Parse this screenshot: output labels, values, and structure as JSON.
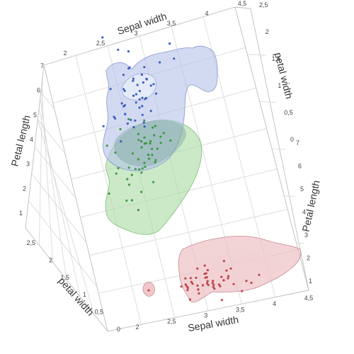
{
  "chart_data": {
    "type": "scatter3d",
    "title": "",
    "dimensions": [
      "Sepal width",
      "Petal length",
      "Petal width"
    ],
    "axes": {
      "sepal_width_top": {
        "label": "Sepal width",
        "ticks": [
          "2",
          "2,5",
          "3",
          "3,5",
          "4",
          "4,5"
        ]
      },
      "sepal_width_bottom": {
        "label": "Sepal width",
        "ticks": [
          "2",
          "2,5",
          "3",
          "3,5",
          "4",
          "4,5"
        ]
      },
      "petal_length_left": {
        "label": "Petal length",
        "ticks": [
          "1",
          "2",
          "3",
          "4",
          "5",
          "6",
          "7"
        ]
      },
      "petal_length_right": {
        "label": "Petal length",
        "ticks": [
          "1",
          "2",
          "3",
          "4",
          "5",
          "6",
          "7"
        ]
      },
      "petal_width_left": {
        "label": "petal width",
        "ticks": [
          "0",
          "0,5",
          "1",
          "1,5",
          "2",
          "2,5"
        ]
      },
      "petal_width_right": {
        "label": "petal width",
        "ticks": [
          "0",
          "0,5",
          "1",
          "1,5",
          "2",
          "2,5"
        ]
      }
    },
    "series": [
      {
        "color": "#c0454a",
        "fill": "#e9b6bb",
        "points": [
          [
            3.5,
            1.4,
            0.2
          ],
          [
            3.0,
            1.4,
            0.2
          ],
          [
            3.2,
            1.3,
            0.2
          ],
          [
            3.1,
            1.5,
            0.2
          ],
          [
            3.6,
            1.4,
            0.2
          ],
          [
            3.9,
            1.7,
            0.4
          ],
          [
            3.4,
            1.4,
            0.3
          ],
          [
            3.4,
            1.5,
            0.2
          ],
          [
            2.9,
            1.4,
            0.2
          ],
          [
            3.1,
            1.5,
            0.1
          ],
          [
            3.7,
            1.5,
            0.2
          ],
          [
            3.4,
            1.6,
            0.2
          ],
          [
            3.0,
            1.4,
            0.1
          ],
          [
            3.0,
            1.1,
            0.1
          ],
          [
            4.0,
            1.2,
            0.2
          ],
          [
            4.4,
            1.5,
            0.4
          ],
          [
            3.9,
            1.3,
            0.4
          ],
          [
            3.5,
            1.4,
            0.3
          ],
          [
            3.8,
            1.7,
            0.3
          ],
          [
            3.8,
            1.5,
            0.3
          ],
          [
            3.4,
            1.7,
            0.2
          ],
          [
            3.7,
            1.5,
            0.4
          ],
          [
            3.6,
            1.0,
            0.2
          ],
          [
            3.3,
            1.7,
            0.5
          ],
          [
            3.4,
            1.9,
            0.2
          ],
          [
            3.0,
            1.6,
            0.2
          ],
          [
            3.4,
            1.6,
            0.4
          ],
          [
            3.5,
            1.5,
            0.2
          ],
          [
            3.4,
            1.4,
            0.2
          ],
          [
            3.2,
            1.6,
            0.2
          ],
          [
            3.1,
            1.6,
            0.2
          ],
          [
            3.4,
            1.5,
            0.4
          ],
          [
            4.1,
            1.5,
            0.1
          ],
          [
            4.2,
            1.4,
            0.2
          ],
          [
            3.1,
            1.5,
            0.2
          ],
          [
            3.2,
            1.2,
            0.2
          ],
          [
            3.5,
            1.3,
            0.2
          ],
          [
            3.6,
            1.4,
            0.1
          ],
          [
            3.0,
            1.3,
            0.2
          ],
          [
            3.4,
            1.5,
            0.2
          ],
          [
            3.5,
            1.3,
            0.3
          ],
          [
            2.3,
            1.3,
            0.3
          ],
          [
            3.2,
            1.3,
            0.2
          ],
          [
            3.5,
            1.6,
            0.6
          ],
          [
            3.8,
            1.9,
            0.4
          ],
          [
            3.0,
            1.4,
            0.3
          ],
          [
            3.8,
            1.6,
            0.2
          ],
          [
            3.2,
            1.4,
            0.2
          ],
          [
            3.7,
            1.5,
            0.2
          ],
          [
            3.3,
            1.4,
            0.2
          ]
        ]
      },
      {
        "color": "#3f9a3f",
        "fill": "#a9dba2",
        "points": [
          [
            3.2,
            4.7,
            1.4
          ],
          [
            3.2,
            4.5,
            1.5
          ],
          [
            3.1,
            4.9,
            1.5
          ],
          [
            2.3,
            4.0,
            1.3
          ],
          [
            2.8,
            4.6,
            1.5
          ],
          [
            2.8,
            4.5,
            1.3
          ],
          [
            3.3,
            4.7,
            1.6
          ],
          [
            2.4,
            3.3,
            1.0
          ],
          [
            2.9,
            4.6,
            1.3
          ],
          [
            2.7,
            3.9,
            1.4
          ],
          [
            2.0,
            3.5,
            1.0
          ],
          [
            3.0,
            4.2,
            1.5
          ],
          [
            2.2,
            4.0,
            1.0
          ],
          [
            2.9,
            4.7,
            1.4
          ],
          [
            2.9,
            3.6,
            1.3
          ],
          [
            3.1,
            4.4,
            1.4
          ],
          [
            3.0,
            4.5,
            1.5
          ],
          [
            2.7,
            4.1,
            1.0
          ],
          [
            2.2,
            4.5,
            1.5
          ],
          [
            2.5,
            3.9,
            1.1
          ],
          [
            3.2,
            4.8,
            1.8
          ],
          [
            2.8,
            4.0,
            1.3
          ],
          [
            2.5,
            4.9,
            1.5
          ],
          [
            2.8,
            4.7,
            1.2
          ],
          [
            2.9,
            4.3,
            1.3
          ],
          [
            3.0,
            4.4,
            1.4
          ],
          [
            2.8,
            4.8,
            1.4
          ],
          [
            3.0,
            5.0,
            1.7
          ],
          [
            2.9,
            4.5,
            1.5
          ],
          [
            2.6,
            3.5,
            1.0
          ],
          [
            2.4,
            3.8,
            1.1
          ],
          [
            2.4,
            3.7,
            1.0
          ],
          [
            2.7,
            3.9,
            1.2
          ],
          [
            2.7,
            5.1,
            1.6
          ],
          [
            3.0,
            4.5,
            1.5
          ],
          [
            3.4,
            4.5,
            1.6
          ],
          [
            3.1,
            4.7,
            1.5
          ],
          [
            2.3,
            4.4,
            1.3
          ],
          [
            3.0,
            4.1,
            1.3
          ],
          [
            2.5,
            4.0,
            1.3
          ],
          [
            2.6,
            4.4,
            1.2
          ],
          [
            3.0,
            4.6,
            1.4
          ],
          [
            2.6,
            4.0,
            1.2
          ],
          [
            2.3,
            3.3,
            1.0
          ],
          [
            2.7,
            4.2,
            1.3
          ],
          [
            3.0,
            4.2,
            1.2
          ],
          [
            2.9,
            4.2,
            1.3
          ],
          [
            2.9,
            4.3,
            1.3
          ],
          [
            2.5,
            3.0,
            1.1
          ],
          [
            2.8,
            4.1,
            1.3
          ]
        ]
      },
      {
        "color": "#3d5fc0",
        "fill": "#b7c4ea",
        "points": [
          [
            3.3,
            6.0,
            2.5
          ],
          [
            2.7,
            5.1,
            1.9
          ],
          [
            3.0,
            5.9,
            2.1
          ],
          [
            2.9,
            5.6,
            1.8
          ],
          [
            3.0,
            5.8,
            2.2
          ],
          [
            3.0,
            6.6,
            2.1
          ],
          [
            2.5,
            4.5,
            1.7
          ],
          [
            2.9,
            6.3,
            1.8
          ],
          [
            2.5,
            5.8,
            1.8
          ],
          [
            3.6,
            6.1,
            2.5
          ],
          [
            3.2,
            5.1,
            2.0
          ],
          [
            2.7,
            5.3,
            1.9
          ],
          [
            3.0,
            5.5,
            2.1
          ],
          [
            2.5,
            5.0,
            2.0
          ],
          [
            2.8,
            5.1,
            2.4
          ],
          [
            3.2,
            5.3,
            2.3
          ],
          [
            3.0,
            5.5,
            1.8
          ],
          [
            3.8,
            6.7,
            2.2
          ],
          [
            2.6,
            6.9,
            2.3
          ],
          [
            2.2,
            5.0,
            1.5
          ],
          [
            3.2,
            5.7,
            2.3
          ],
          [
            2.8,
            4.9,
            2.0
          ],
          [
            2.8,
            6.7,
            2.0
          ],
          [
            2.7,
            4.9,
            1.8
          ],
          [
            3.3,
            5.7,
            2.1
          ],
          [
            3.2,
            6.0,
            1.8
          ],
          [
            2.8,
            4.8,
            1.8
          ],
          [
            3.0,
            4.9,
            1.8
          ],
          [
            2.8,
            5.6,
            2.1
          ],
          [
            3.0,
            5.8,
            1.6
          ],
          [
            2.8,
            6.1,
            1.9
          ],
          [
            3.8,
            6.4,
            2.0
          ],
          [
            2.8,
            5.6,
            2.2
          ],
          [
            2.8,
            5.1,
            1.5
          ],
          [
            2.6,
            5.6,
            1.4
          ],
          [
            3.0,
            6.1,
            2.3
          ],
          [
            3.4,
            5.6,
            2.4
          ],
          [
            3.1,
            5.5,
            1.8
          ],
          [
            3.0,
            4.8,
            1.8
          ],
          [
            3.1,
            5.4,
            2.1
          ],
          [
            3.1,
            5.6,
            2.4
          ],
          [
            3.1,
            5.1,
            2.3
          ],
          [
            2.7,
            5.1,
            1.9
          ],
          [
            3.2,
            5.9,
            2.3
          ],
          [
            3.3,
            5.7,
            2.5
          ],
          [
            3.0,
            5.2,
            2.3
          ],
          [
            2.5,
            5.0,
            1.9
          ],
          [
            3.0,
            5.2,
            2.0
          ],
          [
            3.4,
            5.4,
            2.3
          ],
          [
            3.0,
            5.1,
            1.8
          ]
        ]
      }
    ]
  }
}
